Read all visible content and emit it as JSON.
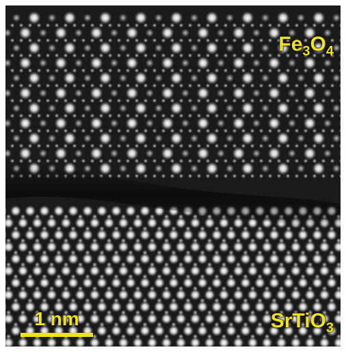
{
  "figure": {
    "top_layer": {
      "formula": "Fe",
      "sub1": "3",
      "mid": "O",
      "sub2": "4"
    },
    "bottom_layer": {
      "formula": "SrTiO",
      "sub": "3"
    },
    "scale_bar": {
      "label": "1 nm"
    }
  },
  "colors": {
    "label": "#f2e21a",
    "scale_bar": "#f2e21a",
    "background": "#161616",
    "atom": "#ffffff"
  },
  "icons": {
    "image": "stem-lattice-micrograph"
  }
}
